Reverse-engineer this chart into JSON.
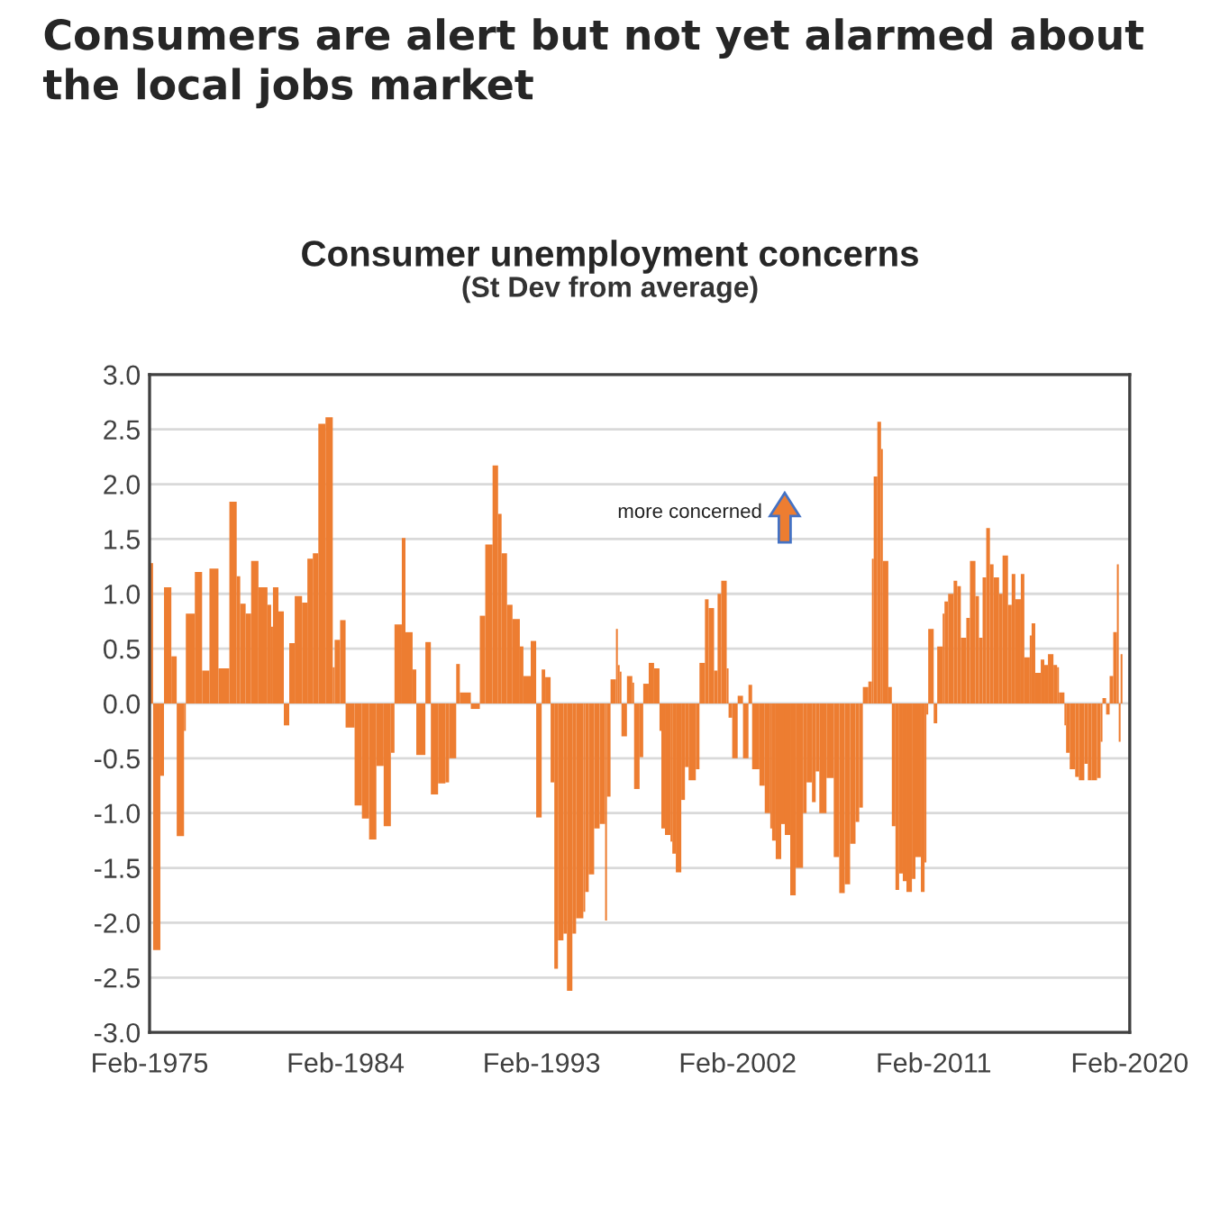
{
  "chart_data": {
    "type": "bar",
    "title": "Consumer unemployment concerns",
    "subtitle": "(St Dev from average)",
    "annotations": [
      "Consumers are alert but not yet alarmed about the local jobs market",
      "more concerned"
    ],
    "x": [
      "1975-02",
      "1975-04",
      "1975-08",
      "1975-10",
      "1976-02",
      "1976-05",
      "1976-09",
      "1976-10",
      "1977-03",
      "1977-07",
      "1977-11",
      "1978-04",
      "1978-10",
      "1979-02",
      "1979-04",
      "1979-07",
      "1979-10",
      "1980-02",
      "1980-07",
      "1980-09",
      "1980-10",
      "1981-01",
      "1981-04",
      "1981-07",
      "1981-10",
      "1982-02",
      "1982-05",
      "1982-08",
      "1982-11",
      "1983-03",
      "1983-07",
      "1983-08",
      "1983-11",
      "1984-02",
      "1984-07",
      "1984-11",
      "1985-03",
      "1985-07",
      "1985-11",
      "1986-03",
      "1986-05",
      "1986-09",
      "1986-11",
      "1987-03",
      "1987-05",
      "1987-10",
      "1988-01",
      "1988-05",
      "1988-09",
      "1988-11",
      "1989-03",
      "1989-05",
      "1989-11",
      "1990-04",
      "1990-07",
      "1990-11",
      "1991-02",
      "1991-04",
      "1991-07",
      "1991-10",
      "1992-02",
      "1992-04",
      "1992-08",
      "1992-11",
      "1993-02",
      "1993-04",
      "1993-07",
      "1993-09",
      "1993-11",
      "1994-02",
      "1994-04",
      "1994-07",
      "1994-09",
      "1995-01",
      "1995-02",
      "1995-04",
      "1995-07",
      "1995-10",
      "1996-01",
      "1996-02",
      "1996-04",
      "1996-07",
      "1996-08",
      "1996-09",
      "1996-10",
      "1997-01",
      "1997-04",
      "1997-05",
      "1997-08",
      "1997-10",
      "1998-01",
      "1998-04",
      "1998-07",
      "1998-08",
      "1998-10",
      "1999-01",
      "1999-02",
      "1999-04",
      "1999-07",
      "1999-09",
      "1999-11",
      "2000-03",
      "2000-05",
      "2000-08",
      "2000-10",
      "2001-01",
      "2001-03",
      "2001-05",
      "2001-08",
      "2001-09",
      "2001-11",
      "2002-02",
      "2002-05",
      "2002-08",
      "2002-10",
      "2003-02",
      "2003-05",
      "2003-08",
      "2003-09",
      "2003-11",
      "2004-02",
      "2004-04",
      "2004-07",
      "2004-10",
      "2005-02",
      "2005-04",
      "2005-07",
      "2005-09",
      "2005-11",
      "2006-03",
      "2006-07",
      "2006-10",
      "2007-01",
      "2007-04",
      "2007-07",
      "2007-09",
      "2007-11",
      "2008-02",
      "2008-04",
      "2008-05",
      "2008-07",
      "2008-09",
      "2008-10",
      "2009-01",
      "2009-03",
      "2009-05",
      "2009-07",
      "2009-09",
      "2009-11",
      "2010-02",
      "2010-04",
      "2010-07",
      "2010-09",
      "2010-10",
      "2010-11",
      "2011-02",
      "2011-04",
      "2011-07",
      "2011-08",
      "2011-10",
      "2012-01",
      "2012-03",
      "2012-05",
      "2012-08",
      "2012-10",
      "2013-01",
      "2013-03",
      "2013-05",
      "2013-07",
      "2013-09",
      "2013-11",
      "2014-02",
      "2014-04",
      "2014-07",
      "2014-09",
      "2014-11",
      "2015-02",
      "2015-04",
      "2015-07",
      "2015-08",
      "2015-10",
      "2016-01",
      "2016-03",
      "2016-05",
      "2016-08",
      "2016-10",
      "2016-11",
      "2017-02",
      "2017-03",
      "2017-05",
      "2017-08",
      "2017-10",
      "2018-01",
      "2018-03",
      "2018-05",
      "2018-08",
      "2018-10",
      "2018-11",
      "2019-01",
      "2019-03",
      "2019-05",
      "2019-07",
      "2019-08",
      "2019-09"
    ],
    "series": [
      {
        "color": "#ed7d31",
        "values": [
          1.28,
          -2.25,
          -0.66,
          1.06,
          0.43,
          -1.21,
          -0.25,
          0.82,
          1.2,
          0.3,
          1.23,
          0.32,
          1.84,
          1.16,
          0.91,
          0.82,
          1.3,
          1.06,
          0.9,
          0.7,
          1.06,
          0.84,
          -0.2,
          0.55,
          0.98,
          0.92,
          1.32,
          1.37,
          2.55,
          2.61,
          0.33,
          0.58,
          0.76,
          -0.22,
          -0.93,
          -1.05,
          -1.24,
          -0.57,
          -1.12,
          -0.45,
          0.72,
          1.51,
          0.65,
          0.31,
          -0.47,
          0.56,
          -0.83,
          -0.73,
          -0.72,
          -0.5,
          0.36,
          0.1,
          -0.05,
          0.8,
          1.45,
          2.17,
          1.73,
          1.37,
          0.9,
          0.77,
          0.52,
          0.25,
          0.57,
          -1.04,
          0.31,
          0.24,
          -0.72,
          -2.42,
          -2.16,
          -2.1,
          -2.62,
          -2.1,
          -1.96,
          -1.9,
          -1.72,
          -1.56,
          -1.14,
          -1.1,
          -1.98,
          -0.85,
          0.22,
          0.68,
          0.35,
          0.29,
          -0.3,
          0.25,
          0.19,
          -0.78,
          -0.49,
          0.18,
          0.37,
          0.32,
          -0.25,
          -1.14,
          -1.2,
          -1.26,
          -1.37,
          -1.54,
          -0.88,
          -0.58,
          -0.7,
          -0.6,
          0.37,
          0.95,
          0.87,
          0.3,
          1.0,
          1.12,
          0.32,
          -0.13,
          -0.5,
          0.07,
          -0.5,
          0.17,
          -0.6,
          -0.75,
          -1.0,
          -1.14,
          -1.25,
          -1.42,
          -1.1,
          -1.2,
          -1.75,
          -1.5,
          -1.0,
          -0.72,
          -0.9,
          -0.62,
          -1.0,
          -0.68,
          -1.4,
          -1.73,
          -1.65,
          -1.28,
          -1.08,
          -0.95,
          0.15,
          0.2,
          1.32,
          2.07,
          2.57,
          2.32,
          1.3,
          0.15,
          -1.12,
          -1.7,
          -1.55,
          -1.62,
          -1.72,
          -1.6,
          -1.4,
          -1.72,
          -1.45,
          -0.1,
          0.68,
          -0.18,
          0.52,
          0.82,
          0.93,
          1.0,
          1.12,
          1.07,
          0.6,
          0.78,
          1.3,
          0.98,
          0.6,
          1.15,
          1.6,
          1.27,
          1.15,
          1.0,
          1.35,
          0.9,
          1.18,
          0.95,
          1.18,
          0.42,
          0.62,
          0.73,
          0.28,
          0.4,
          0.35,
          0.45,
          0.35,
          0.33,
          0.1,
          -0.2,
          -0.45,
          -0.6,
          -0.67,
          -0.7,
          -0.55,
          -0.7,
          -0.7,
          -0.68,
          -0.35,
          0.05,
          -0.1,
          0.25,
          0.65,
          1.27,
          -0.35,
          0.45
        ]
      }
    ],
    "xlim": [
      "1975-02",
      "2020-02"
    ],
    "xticks": [
      {
        "value": "1975-02",
        "label": "Feb-1975"
      },
      {
        "value": "1984-02",
        "label": "Feb-1984"
      },
      {
        "value": "1993-02",
        "label": "Feb-1993"
      },
      {
        "value": "2002-02",
        "label": "Feb-2002"
      },
      {
        "value": "2011-02",
        "label": "Feb-2011"
      },
      {
        "value": "2020-02",
        "label": "Feb-2020"
      }
    ],
    "ylim": [
      -3,
      3
    ],
    "yticks": [
      {
        "value": -3,
        "label": "-3.0"
      },
      {
        "value": -2.5,
        "label": "-2.5"
      },
      {
        "value": -2,
        "label": "-2.0"
      },
      {
        "value": -1.5,
        "label": "-1.5"
      },
      {
        "value": -1,
        "label": "-1.0"
      },
      {
        "value": -0.5,
        "label": "-0.5"
      },
      {
        "value": 0,
        "label": "0.0"
      },
      {
        "value": 0.5,
        "label": "0.5"
      },
      {
        "value": 1,
        "label": "1.0"
      },
      {
        "value": 1.5,
        "label": "1.5"
      },
      {
        "value": 2,
        "label": "2.0"
      },
      {
        "value": 2.5,
        "label": "2.5"
      },
      {
        "value": 3,
        "label": "3.0"
      }
    ],
    "grid": "y"
  }
}
